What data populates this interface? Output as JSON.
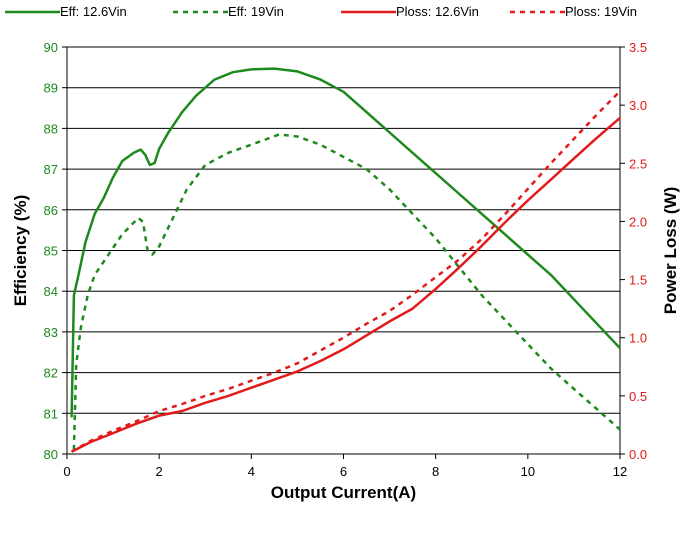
{
  "chart_data": {
    "type": "line",
    "xlabel": "Output Current(A)",
    "ylabel_left": "Efficiency (%)",
    "ylabel_right": "Power Loss (W)",
    "xlim": [
      0,
      12
    ],
    "ylim_left": [
      80,
      90
    ],
    "ylim_right": [
      0,
      3.5
    ],
    "x_ticks": [
      "0",
      "2",
      "4",
      "6",
      "8",
      "10",
      "12"
    ],
    "y_ticks_left": [
      "80",
      "81",
      "82",
      "83",
      "84",
      "85",
      "86",
      "87",
      "88",
      "89",
      "90"
    ],
    "y_ticks_right": [
      "0.0",
      "0.5",
      "1.0",
      "1.5",
      "2.0",
      "2.5",
      "3.0",
      "3.5"
    ],
    "grid": "horizontal",
    "legend_position": "top",
    "series": [
      {
        "name": "Eff: 12.6Vin",
        "axis": "left",
        "color": "#1e8a1e",
        "style": "solid",
        "points": [
          [
            0.1,
            80.9
          ],
          [
            0.15,
            83.9
          ],
          [
            0.25,
            84.4
          ],
          [
            0.4,
            85.2
          ],
          [
            0.6,
            85.9
          ],
          [
            0.8,
            86.3
          ],
          [
            1.0,
            86.8
          ],
          [
            1.2,
            87.2
          ],
          [
            1.45,
            87.4
          ],
          [
            1.6,
            87.48
          ],
          [
            1.7,
            87.35
          ],
          [
            1.8,
            87.1
          ],
          [
            1.9,
            87.15
          ],
          [
            2.0,
            87.5
          ],
          [
            2.2,
            87.9
          ],
          [
            2.5,
            88.4
          ],
          [
            2.8,
            88.8
          ],
          [
            3.2,
            89.2
          ],
          [
            3.6,
            89.38
          ],
          [
            4.0,
            89.45
          ],
          [
            4.5,
            89.47
          ],
          [
            5.0,
            89.4
          ],
          [
            5.5,
            89.2
          ],
          [
            6.0,
            88.9
          ],
          [
            6.5,
            88.4
          ],
          [
            7.0,
            87.9
          ],
          [
            7.5,
            87.4
          ],
          [
            8.0,
            86.9
          ],
          [
            8.5,
            86.4
          ],
          [
            9.0,
            85.9
          ],
          [
            9.5,
            85.4
          ],
          [
            10.0,
            84.9
          ],
          [
            10.5,
            84.4
          ],
          [
            11.0,
            83.8
          ],
          [
            11.5,
            83.2
          ],
          [
            12.0,
            82.6
          ]
        ]
      },
      {
        "name": "Eff: 19Vin",
        "axis": "left",
        "color": "#1e8a1e",
        "style": "dashed",
        "points": [
          [
            0.15,
            80.1
          ],
          [
            0.2,
            82.2
          ],
          [
            0.3,
            83.1
          ],
          [
            0.45,
            83.9
          ],
          [
            0.6,
            84.4
          ],
          [
            0.9,
            84.9
          ],
          [
            1.2,
            85.4
          ],
          [
            1.55,
            85.8
          ],
          [
            1.65,
            85.7
          ],
          [
            1.75,
            85.0
          ],
          [
            1.85,
            84.9
          ],
          [
            2.0,
            85.1
          ],
          [
            2.3,
            85.8
          ],
          [
            2.6,
            86.5
          ],
          [
            3.0,
            87.1
          ],
          [
            3.5,
            87.4
          ],
          [
            4.0,
            87.6
          ],
          [
            4.6,
            87.85
          ],
          [
            5.0,
            87.8
          ],
          [
            5.5,
            87.6
          ],
          [
            6.0,
            87.3
          ],
          [
            6.5,
            87.0
          ],
          [
            7.0,
            86.5
          ],
          [
            7.5,
            85.9
          ],
          [
            8.0,
            85.3
          ],
          [
            8.5,
            84.6
          ],
          [
            9.0,
            83.9
          ],
          [
            9.5,
            83.3
          ],
          [
            10.0,
            82.7
          ],
          [
            10.5,
            82.1
          ],
          [
            11.0,
            81.6
          ],
          [
            11.5,
            81.1
          ],
          [
            12.0,
            80.6
          ]
        ]
      },
      {
        "name": "Ploss: 12.6Vin",
        "axis": "right",
        "color": "#e11b1b",
        "style": "solid",
        "points": [
          [
            0.1,
            0.02
          ],
          [
            0.5,
            0.1
          ],
          [
            1.0,
            0.18
          ],
          [
            1.5,
            0.26
          ],
          [
            2.0,
            0.33
          ],
          [
            2.5,
            0.37
          ],
          [
            3.0,
            0.44
          ],
          [
            3.5,
            0.5
          ],
          [
            4.0,
            0.57
          ],
          [
            4.5,
            0.64
          ],
          [
            5.0,
            0.71
          ],
          [
            5.5,
            0.8
          ],
          [
            6.0,
            0.9
          ],
          [
            6.5,
            1.02
          ],
          [
            7.0,
            1.14
          ],
          [
            7.5,
            1.25
          ],
          [
            8.0,
            1.42
          ],
          [
            8.5,
            1.6
          ],
          [
            9.0,
            1.79
          ],
          [
            9.5,
            1.99
          ],
          [
            10.0,
            2.18
          ],
          [
            10.5,
            2.36
          ],
          [
            11.0,
            2.54
          ],
          [
            11.5,
            2.72
          ],
          [
            12.0,
            2.89
          ]
        ]
      },
      {
        "name": "Ploss: 19Vin",
        "axis": "right",
        "color": "#e11b1b",
        "style": "dashed",
        "points": [
          [
            0.1,
            0.02
          ],
          [
            0.5,
            0.11
          ],
          [
            1.0,
            0.2
          ],
          [
            1.5,
            0.28
          ],
          [
            2.0,
            0.37
          ],
          [
            2.5,
            0.43
          ],
          [
            3.0,
            0.5
          ],
          [
            3.5,
            0.56
          ],
          [
            4.0,
            0.63
          ],
          [
            4.5,
            0.7
          ],
          [
            5.0,
            0.78
          ],
          [
            5.5,
            0.89
          ],
          [
            6.0,
            1.0
          ],
          [
            6.5,
            1.12
          ],
          [
            7.0,
            1.23
          ],
          [
            7.5,
            1.37
          ],
          [
            8.0,
            1.52
          ],
          [
            8.5,
            1.67
          ],
          [
            9.0,
            1.85
          ],
          [
            9.5,
            2.06
          ],
          [
            10.0,
            2.28
          ],
          [
            10.5,
            2.5
          ],
          [
            11.0,
            2.71
          ],
          [
            11.5,
            2.92
          ],
          [
            12.0,
            3.12
          ]
        ]
      }
    ]
  }
}
